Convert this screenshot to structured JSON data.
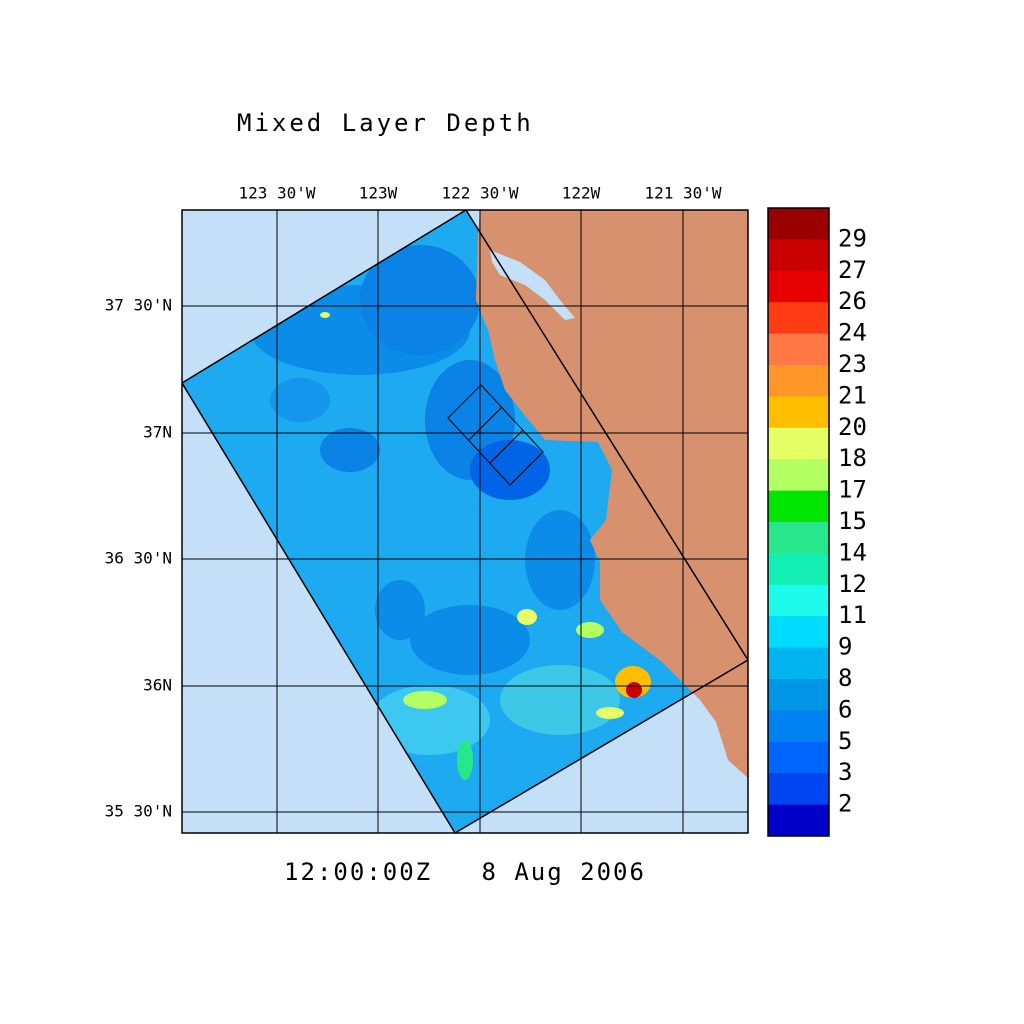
{
  "title": "Mixed Layer Depth",
  "lon_labels": [
    "123 30'W",
    "123W",
    "122 30'W",
    "122W",
    "121 30'W"
  ],
  "lat_labels": [
    "37 30'N",
    "37N",
    "36 30'N",
    "36N",
    "35 30'N"
  ],
  "colorbar": {
    "colors": [
      "#9b0000",
      "#c80000",
      "#e60000",
      "#ff3c14",
      "#ff7846",
      "#ff9628",
      "#ffbe00",
      "#e6ff64",
      "#b4ff64",
      "#00e600",
      "#28e68c",
      "#14f0b4",
      "#1efaeb",
      "#00dcff",
      "#00b4f0",
      "#0096e6",
      "#0082f0",
      "#0064ff",
      "#0046f0",
      "#0000c8"
    ],
    "labels": [
      "29",
      "27",
      "26",
      "24",
      "23",
      "21",
      "20",
      "18",
      "17",
      "15",
      "14",
      "12",
      "11",
      "9",
      "8",
      "6",
      "5",
      "3",
      "2"
    ]
  },
  "timestamp": "12:00:00Z   8 Aug 2006"
}
